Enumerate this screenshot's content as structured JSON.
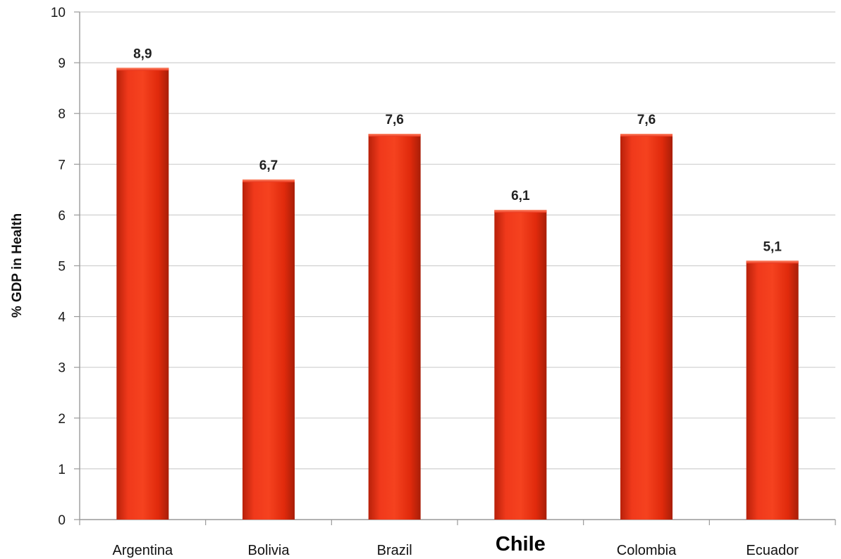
{
  "chart_data": {
    "type": "bar",
    "title": "",
    "xlabel": "",
    "ylabel": "% GDP in Health",
    "ylim": [
      0,
      10
    ],
    "yticks": [
      "0",
      "1",
      "2",
      "3",
      "4",
      "5",
      "6",
      "7",
      "8",
      "9",
      "10"
    ],
    "grid": true,
    "legend": "none",
    "categories": [
      "Argentina",
      "Bolivia",
      "Brazil",
      "Chile",
      "Colombia",
      "Ecuador"
    ],
    "emphasized_category": "Chile",
    "series": [
      {
        "values": [
          8.9,
          6.7,
          7.6,
          6.1,
          7.6,
          5.1
        ],
        "labels": [
          "8,9",
          "6,7",
          "7,6",
          "6,1",
          "7,6",
          "5,1"
        ]
      }
    ],
    "colors": {
      "bar_light": "#f33a1a",
      "bar_mid": "#e02a0c",
      "bar_dark": "#a81e08",
      "gridline": "#cfcfcf",
      "axis": "#9a9a9a"
    }
  }
}
